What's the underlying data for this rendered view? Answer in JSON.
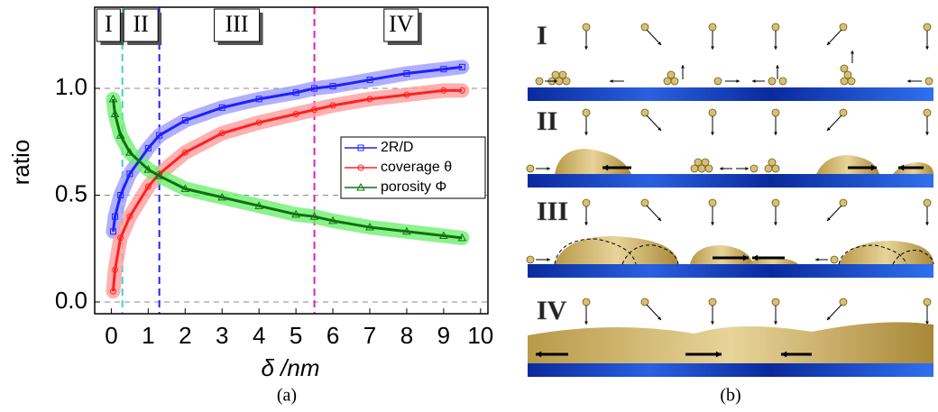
{
  "chart_data": {
    "type": "line",
    "xlabel": "δ /nm",
    "ylabel": "ratio",
    "caption": "(a)",
    "x": [
      0.05,
      0.1,
      0.25,
      0.5,
      1,
      1.3,
      2,
      3,
      4,
      5,
      5.5,
      6,
      7,
      8,
      9,
      9.5
    ],
    "series": [
      {
        "name": "2R/D",
        "color": "#1f1fff",
        "band_color": "#9c9cff",
        "marker": "square",
        "values": [
          0.33,
          0.4,
          0.5,
          0.6,
          0.72,
          0.78,
          0.85,
          0.91,
          0.95,
          0.98,
          1.0,
          1.01,
          1.04,
          1.07,
          1.09,
          1.1
        ]
      },
      {
        "name": "coverage θ",
        "color": "#ff2020",
        "band_color": "#ff9c9c",
        "marker": "circle",
        "values": [
          0.05,
          0.15,
          0.3,
          0.4,
          0.54,
          0.6,
          0.7,
          0.79,
          0.84,
          0.88,
          0.9,
          0.92,
          0.95,
          0.97,
          0.99,
          0.99
        ]
      },
      {
        "name": "porosity Φ",
        "color": "#107010",
        "band_color": "#6ef06e",
        "marker": "triangle",
        "values": [
          0.95,
          0.88,
          0.78,
          0.7,
          0.62,
          0.59,
          0.53,
          0.49,
          0.45,
          0.41,
          0.4,
          0.38,
          0.35,
          0.33,
          0.31,
          0.3
        ]
      }
    ],
    "xlim": [
      -0.45,
      10.2
    ],
    "xticks": [
      0,
      1,
      2,
      3,
      4,
      5,
      6,
      7,
      8,
      9,
      10
    ],
    "ylim": [
      -0.055,
      1.38
    ],
    "yticks": [
      {
        "value": 0,
        "label": "0.0"
      },
      0.5,
      {
        "value": 1,
        "label": "1.0"
      }
    ],
    "grid": true,
    "legend": "right",
    "vlines": [
      {
        "x": 0.3,
        "color": "#3cd2c0"
      },
      {
        "x": 1.3,
        "color": "#2020ff"
      },
      {
        "x": 5.5,
        "color": "#e020c0"
      }
    ],
    "region_labels": [
      "I",
      "II",
      "III",
      "IV"
    ]
  },
  "diagram": {
    "caption": "(b)",
    "rows": [
      "I",
      "II",
      "III",
      "IV"
    ]
  }
}
